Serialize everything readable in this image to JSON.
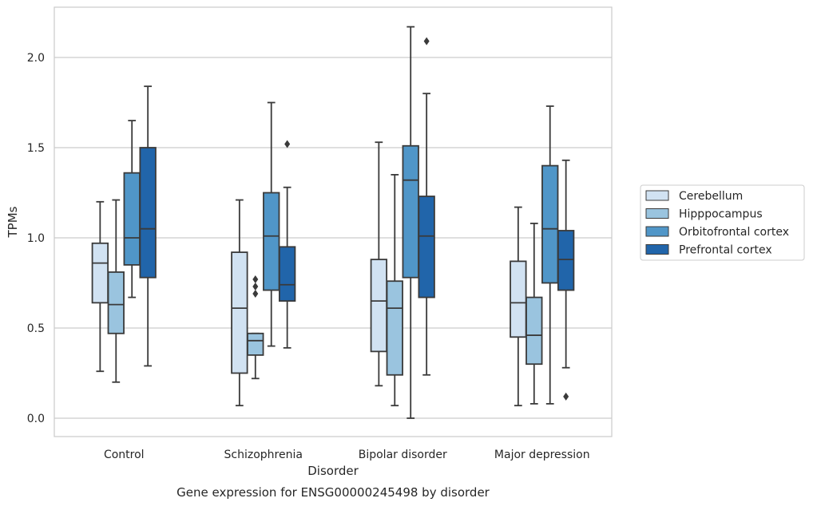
{
  "caption": "Gene expression for ENSG00000245498 by disorder",
  "chart_data": {
    "type": "box",
    "xlabel": "Disorder",
    "ylabel": "TPMs",
    "ylim": [
      -0.1,
      2.28
    ],
    "yticks": [
      "0.0",
      "0.5",
      "1.0",
      "1.5",
      "2.0"
    ],
    "grid": true,
    "legend_position": "right",
    "categories": [
      "Control",
      "Schizophrenia",
      "Bipolar disorder",
      "Major depression"
    ],
    "series": [
      {
        "name": "Cerebellum",
        "color": "#d1e2f2",
        "boxes": [
          {
            "whislo": 0.26,
            "q1": 0.64,
            "med": 0.86,
            "q3": 0.97,
            "whishi": 1.2,
            "fliers": []
          },
          {
            "whislo": 0.07,
            "q1": 0.25,
            "med": 0.61,
            "q3": 0.92,
            "whishi": 1.21,
            "fliers": []
          },
          {
            "whislo": 0.18,
            "q1": 0.37,
            "med": 0.65,
            "q3": 0.88,
            "whishi": 1.53,
            "fliers": []
          },
          {
            "whislo": 0.07,
            "q1": 0.45,
            "med": 0.64,
            "q3": 0.87,
            "whishi": 1.17,
            "fliers": []
          }
        ]
      },
      {
        "name": "Hipppocampus",
        "color": "#9ac4df",
        "boxes": [
          {
            "whislo": 0.2,
            "q1": 0.47,
            "med": 0.63,
            "q3": 0.81,
            "whishi": 1.21,
            "fliers": []
          },
          {
            "whislo": 0.22,
            "q1": 0.35,
            "med": 0.43,
            "q3": 0.47,
            "whishi": 0.47,
            "fliers": [
              0.69,
              0.73,
              0.77
            ]
          },
          {
            "whislo": 0.07,
            "q1": 0.24,
            "med": 0.61,
            "q3": 0.76,
            "whishi": 1.35,
            "fliers": []
          },
          {
            "whislo": 0.08,
            "q1": 0.3,
            "med": 0.46,
            "q3": 0.67,
            "whishi": 1.08,
            "fliers": []
          }
        ]
      },
      {
        "name": "Orbitofrontal cortex",
        "color": "#5096c8",
        "boxes": [
          {
            "whislo": 0.67,
            "q1": 0.85,
            "med": 1.0,
            "q3": 1.36,
            "whishi": 1.65,
            "fliers": []
          },
          {
            "whislo": 0.4,
            "q1": 0.71,
            "med": 1.01,
            "q3": 1.25,
            "whishi": 1.75,
            "fliers": []
          },
          {
            "whislo": 0.0,
            "q1": 0.78,
            "med": 1.32,
            "q3": 1.51,
            "whishi": 2.17,
            "fliers": []
          },
          {
            "whislo": 0.08,
            "q1": 0.75,
            "med": 1.05,
            "q3": 1.4,
            "whishi": 1.73,
            "fliers": []
          }
        ]
      },
      {
        "name": "Prefrontal cortex",
        "color": "#2165aa",
        "boxes": [
          {
            "whislo": 0.29,
            "q1": 0.78,
            "med": 1.05,
            "q3": 1.5,
            "whishi": 1.84,
            "fliers": []
          },
          {
            "whislo": 0.39,
            "q1": 0.65,
            "med": 0.74,
            "q3": 0.95,
            "whishi": 1.28,
            "fliers": [
              1.52
            ]
          },
          {
            "whislo": 0.24,
            "q1": 0.67,
            "med": 1.01,
            "q3": 1.23,
            "whishi": 1.8,
            "fliers": [
              2.09
            ]
          },
          {
            "whislo": 0.28,
            "q1": 0.71,
            "med": 0.88,
            "q3": 1.04,
            "whishi": 1.43,
            "fliers": [
              0.12
            ]
          }
        ]
      }
    ]
  }
}
